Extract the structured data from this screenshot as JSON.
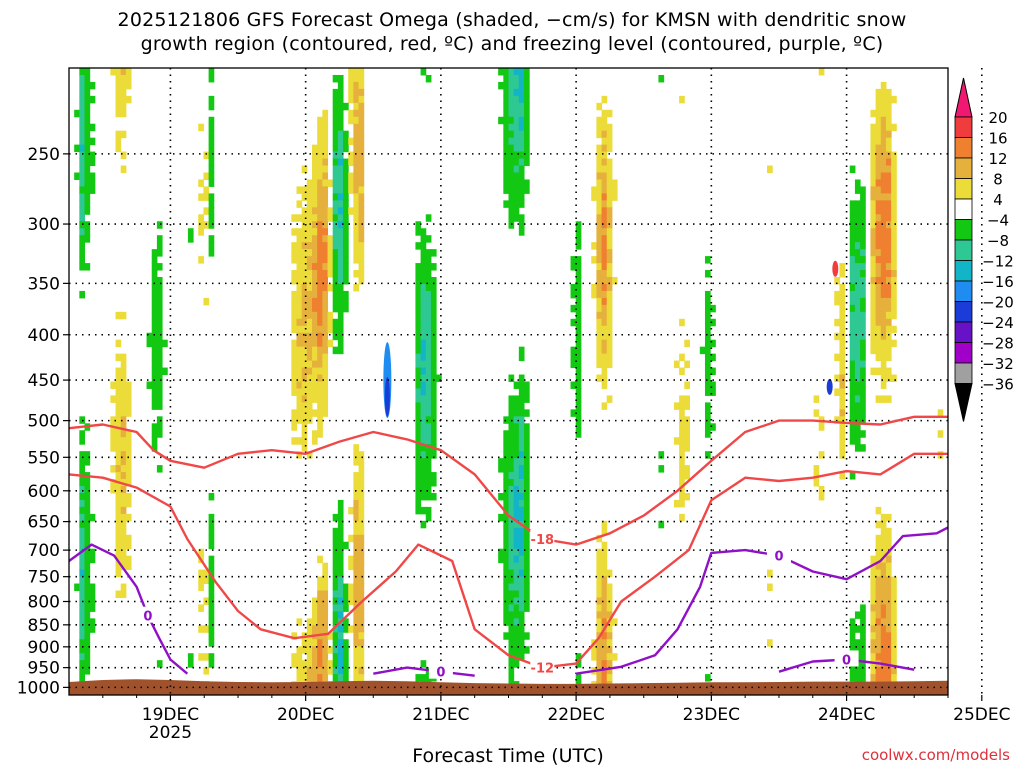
{
  "title": {
    "line1": "2025121806 GFS Forecast Omega (shaded, −cm/s) for KMSN with dendritic snow",
    "line2": "growth region (contoured, red, ºC) and freezing level (contoured, purple, ºC)"
  },
  "credit": "coolwx.com/models",
  "chart_data": {
    "type": "heatmap",
    "title": "2025121806 GFS Forecast Omega (shaded, −cm/s) for KMSN with dendritic snow growth region (contoured, red, ºC) and freezing level (contoured, purple, ºC)",
    "xlabel": "Forecast Time (UTC)",
    "ylabel": "",
    "x_ticks": [
      "19DEC",
      "20DEC",
      "21DEC",
      "22DEC",
      "23DEC",
      "24DEC",
      "25DEC"
    ],
    "x_tick_sublabel": "2025",
    "x_range_hours_from_19DEC_00z": [
      -18,
      138
    ],
    "y_scale": "log-pressure (inverted)",
    "y_ticks": [
      250,
      300,
      350,
      400,
      450,
      500,
      550,
      600,
      650,
      700,
      750,
      800,
      850,
      900,
      950,
      1000
    ],
    "y_range_hPa": [
      200,
      1020
    ],
    "grid": true,
    "colorbar": {
      "labels": [
        "20",
        "16",
        "12",
        "8",
        "4",
        "−4",
        "−8",
        "−12",
        "−16",
        "−20",
        "−24",
        "−28",
        "−32",
        "−36"
      ],
      "colors": [
        "#f01870",
        "#f03c3c",
        "#ee8030",
        "#e6b03c",
        "#ebdc3a",
        "#ffffff",
        "#12c812",
        "#2ec892",
        "#12b4c8",
        "#1e8cf0",
        "#1c3cd8",
        "#6812c8",
        "#a000c8",
        "#a0a0a0",
        "#000000"
      ]
    },
    "contours": [
      {
        "label": "-18",
        "color": "#f04848",
        "points": [
          [
            -18,
            510
          ],
          [
            -12,
            505
          ],
          [
            -6,
            515
          ],
          [
            -3,
            540
          ],
          [
            0,
            555
          ],
          [
            6,
            565
          ],
          [
            12,
            545
          ],
          [
            18,
            540
          ],
          [
            24,
            545
          ],
          [
            30,
            528
          ],
          [
            36,
            515
          ],
          [
            42,
            525
          ],
          [
            48,
            540
          ],
          [
            54,
            575
          ],
          [
            60,
            640
          ],
          [
            66,
            680
          ],
          [
            72,
            690
          ],
          [
            78,
            670
          ],
          [
            84,
            640
          ],
          [
            90,
            600
          ],
          [
            96,
            555
          ],
          [
            102,
            515
          ],
          [
            108,
            500
          ],
          [
            114,
            500
          ],
          [
            120,
            503
          ],
          [
            126,
            505
          ],
          [
            132,
            495
          ],
          [
            138,
            495
          ]
        ]
      },
      {
        "label": "-12",
        "color": "#f04848",
        "points": [
          [
            -18,
            575
          ],
          [
            -12,
            580
          ],
          [
            -6,
            595
          ],
          [
            0,
            625
          ],
          [
            3,
            680
          ],
          [
            8,
            760
          ],
          [
            12,
            820
          ],
          [
            16,
            860
          ],
          [
            22,
            880
          ],
          [
            28,
            870
          ],
          [
            34,
            800
          ],
          [
            40,
            740
          ],
          [
            44,
            690
          ],
          [
            50,
            720
          ],
          [
            54,
            860
          ],
          [
            60,
            920
          ],
          [
            66,
            950
          ],
          [
            72,
            940
          ],
          [
            76,
            880
          ],
          [
            80,
            800
          ],
          [
            86,
            750
          ],
          [
            92,
            700
          ],
          [
            96,
            615
          ],
          [
            102,
            580
          ],
          [
            108,
            585
          ],
          [
            114,
            580
          ],
          [
            120,
            570
          ],
          [
            126,
            575
          ],
          [
            132,
            545
          ],
          [
            138,
            545
          ]
        ]
      },
      {
        "label": "0",
        "color": "#9010c8",
        "points": [
          [
            -18,
            720
          ],
          [
            -14,
            690
          ],
          [
            -10,
            710
          ],
          [
            -6,
            770
          ],
          [
            -4,
            830
          ],
          [
            -2,
            880
          ],
          [
            0,
            930
          ],
          [
            3,
            965
          ]
        ]
      },
      {
        "label": "0",
        "color": "#9010c8",
        "points": [
          [
            36,
            965
          ],
          [
            42,
            950
          ],
          [
            48,
            960
          ],
          [
            54,
            970
          ]
        ]
      },
      {
        "label": "0",
        "color": "#9010c8",
        "points": [
          [
            72,
            965
          ],
          [
            80,
            948
          ],
          [
            86,
            920
          ],
          [
            90,
            860
          ],
          [
            94,
            770
          ],
          [
            96,
            705
          ],
          [
            102,
            700
          ],
          [
            108,
            710
          ],
          [
            114,
            740
          ],
          [
            120,
            755
          ],
          [
            126,
            720
          ],
          [
            130,
            675
          ],
          [
            136,
            670
          ],
          [
            138,
            660
          ]
        ]
      },
      {
        "label": "0",
        "color": "#9010c8",
        "points": [
          [
            108,
            960
          ],
          [
            114,
            935
          ],
          [
            120,
            930
          ],
          [
            126,
            940
          ],
          [
            132,
            955
          ]
        ]
      }
    ]
  }
}
